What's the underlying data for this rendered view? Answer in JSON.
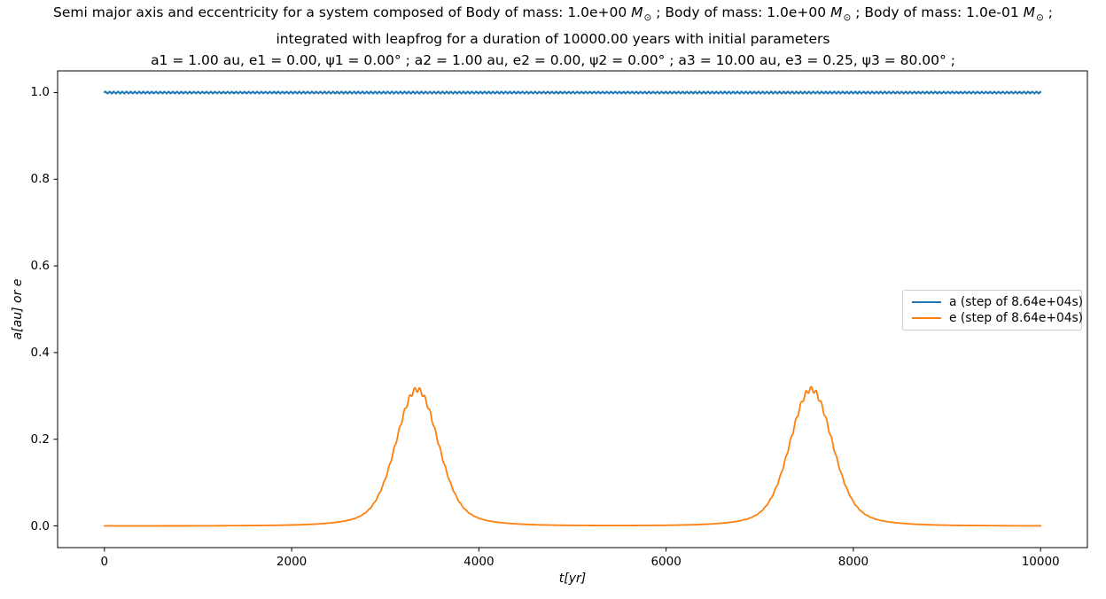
{
  "window": {
    "background": "#ffffff"
  },
  "title": {
    "line1_prefix": "Semi major axis and eccentricity for a system composed of Body of mass: 1.0e+00 ",
    "msun": {
      "letter": "M",
      "sub": "⊙"
    },
    "line1_mid1": " ; Body of mass: 1.0e+00 ",
    "line1_mid2": " ; Body of mass: 1.0e-01 ",
    "line1_suffix": " ;",
    "line2": "integrated with leapfrog for a duration of 10000.00 years with initial parameters",
    "line3": "a1 = 1.00 au, e1 = 0.00, ψ1 = 0.00° ; a2 = 1.00 au, e2 = 0.00, ψ2 = 0.00° ; a3 = 10.00 au, e3 = 0.25, ψ3 = 80.00° ;"
  },
  "axes": {
    "xlabel": "t[yr]",
    "ylabel": "a[au] or e"
  },
  "legend": {
    "position": "center right",
    "entries": [
      {
        "label": "a (step of 8.64e+04s)",
        "color": "#1f77b4"
      },
      {
        "label": "e (step of 8.64e+04s)",
        "color": "#ff7f0e"
      }
    ]
  },
  "chart_data": {
    "type": "line",
    "title": "Semi major axis and eccentricity for a system composed of Body of mass: 1.0e+00 M⊙ ; Body of mass: 1.0e+00 M⊙ ; Body of mass: 1.0e-01 M⊙ ; integrated with leapfrog for a duration of 10000.00 years with initial parameters a1 = 1.00 au, e1 = 0.00, ψ1 = 0.00° ; a2 = 1.00 au, e2 = 0.00, ψ2 = 0.00° ; a3 = 10.00 au, e3 = 0.25, ψ3 = 80.00° ;",
    "xlabel": "t[yr]",
    "ylabel": "a[au] or e",
    "xlim": [
      -500,
      10500
    ],
    "ylim": [
      -0.05,
      1.05
    ],
    "x_ticks": [
      0,
      2000,
      4000,
      6000,
      8000,
      10000
    ],
    "x_tick_labels": [
      "0",
      "2000",
      "4000",
      "6000",
      "8000",
      "10000"
    ],
    "y_ticks": [
      0.0,
      0.2,
      0.4,
      0.6,
      0.8,
      1.0
    ],
    "y_tick_labels": [
      "0.0",
      "0.2",
      "0.4",
      "0.6",
      "0.8",
      "1.0"
    ],
    "grid": false,
    "legend_position": "center right",
    "axis_color": "#000000",
    "series": [
      {
        "id": "a",
        "name": "a (step of 8.64e+04s)",
        "color": "#1f77b4",
        "model": "constant",
        "value": 1.0,
        "noise_amplitude": 0.003,
        "noise_period_yr": 45,
        "t_range": [
          0,
          10000
        ]
      },
      {
        "id": "e",
        "name": "e (step of 8.64e+04s)",
        "color": "#ff7f0e",
        "model": "peaks",
        "baseline": 0.0,
        "ripple_amplitude": 0.006,
        "ripple_period_yr": 55,
        "t_range": [
          0,
          10000
        ],
        "peaks": [
          {
            "center_yr": 3340,
            "height": 0.315,
            "gauss_fraction": 0.75,
            "sigma_yr": 210,
            "lorentz_fraction": 0.25,
            "lorentz_gamma_yr": 600,
            "lorentz_exponent": 2
          },
          {
            "center_yr": 7550,
            "height": 0.315,
            "gauss_fraction": 0.75,
            "sigma_yr": 210,
            "lorentz_fraction": 0.25,
            "lorentz_gamma_yr": 600,
            "lorentz_exponent": 2
          }
        ],
        "key_values": [
          {
            "t": 0,
            "e": 0.0
          },
          {
            "t": 2000,
            "e": 0.003
          },
          {
            "t": 3340,
            "e": 0.315
          },
          {
            "t": 5450,
            "e": 0.002
          },
          {
            "t": 7550,
            "e": 0.315
          },
          {
            "t": 10000,
            "e": 0.0
          }
        ]
      }
    ]
  }
}
